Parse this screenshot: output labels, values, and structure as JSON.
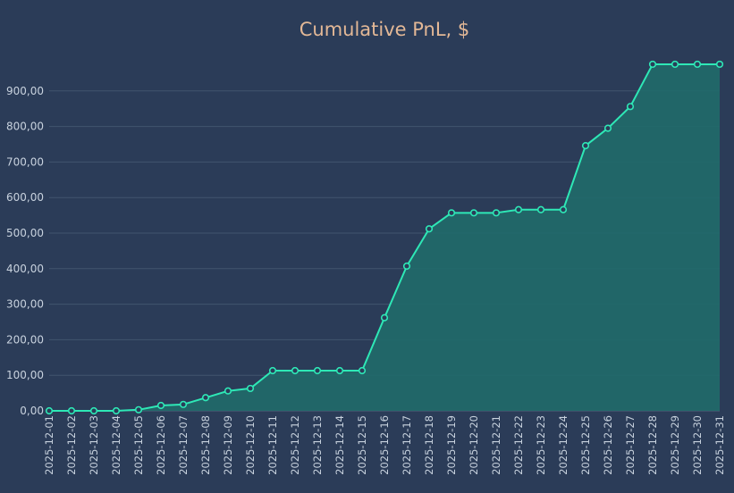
{
  "chart_data": {
    "type": "area",
    "title": "Cumulative PnL, $",
    "xlabel": "",
    "ylabel": "",
    "ylim": [
      0,
      1000
    ],
    "y_ticks": [
      0,
      100,
      200,
      300,
      400,
      500,
      600,
      700,
      800,
      900
    ],
    "y_tick_labels": [
      "0,00",
      "100,00",
      "200,00",
      "300,00",
      "400,00",
      "500,00",
      "600,00",
      "700,00",
      "800,00",
      "900,00"
    ],
    "grid": true,
    "legend": "none",
    "colors": {
      "background": "#2b3c58",
      "line": "#2ee8b6",
      "fill": "#206a6a",
      "title": "#e3b896",
      "tick_text": "#c8d2de"
    },
    "categories": [
      "2025-12-01",
      "2025-12-02",
      "2025-12-03",
      "2025-12-04",
      "2025-12-05",
      "2025-12-06",
      "2025-12-07",
      "2025-12-08",
      "2025-12-09",
      "2025-12-10",
      "2025-12-11",
      "2025-12-12",
      "2025-12-13",
      "2025-12-14",
      "2025-12-15",
      "2025-12-16",
      "2025-12-17",
      "2025-12-18",
      "2025-12-19",
      "2025-12-20",
      "2025-12-21",
      "2025-12-22",
      "2025-12-23",
      "2025-12-24",
      "2025-12-25",
      "2025-12-26",
      "2025-12-27",
      "2025-12-28",
      "2025-12-29",
      "2025-12-30",
      "2025-12-31"
    ],
    "series": [
      {
        "values": [
          0,
          0,
          0,
          0,
          3,
          15,
          18,
          37,
          56,
          63,
          113,
          113,
          113,
          113,
          113,
          262,
          407,
          512,
          557,
          557,
          557,
          566,
          566,
          566,
          746,
          795,
          856,
          975,
          975,
          975,
          975
        ]
      }
    ]
  }
}
